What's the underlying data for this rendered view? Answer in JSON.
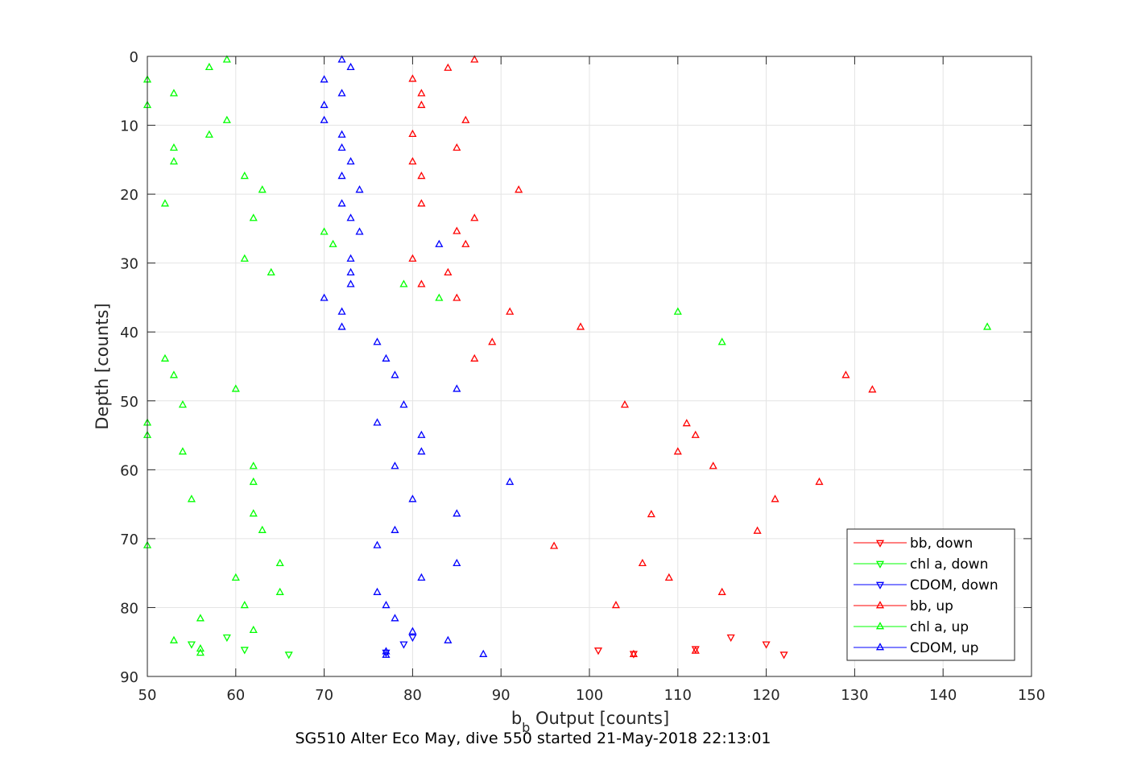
{
  "chart_data": {
    "type": "scatter",
    "title": "SG510 Alter Eco May, dive 550 started 21-May-2018 22:13:01",
    "xlabel_main": "b",
    "xlabel_sub": "b",
    "xlabel_rest": " Output [counts]",
    "ylabel": "Depth [counts]",
    "xlim": [
      50,
      150
    ],
    "ylim": [
      0,
      90
    ],
    "y_reversed": true,
    "grid": true,
    "xticks": [
      "50",
      "60",
      "70",
      "80",
      "90",
      "100",
      "110",
      "120",
      "130",
      "140",
      "150"
    ],
    "yticks": [
      "0",
      "10",
      "20",
      "30",
      "40",
      "50",
      "60",
      "70",
      "80",
      "90"
    ],
    "legend_position": "bottom-right",
    "series": [
      {
        "name": "bb, down",
        "color": "#ff0000",
        "marker": "triangle-down",
        "points": [
          [
            101,
            86.2
          ],
          [
            105,
            86.7
          ],
          [
            112,
            86
          ],
          [
            116,
            84.3
          ],
          [
            120,
            85.3
          ],
          [
            122,
            86.8
          ]
        ]
      },
      {
        "name": "chl a, down",
        "color": "#00ff00",
        "marker": "triangle-down",
        "points": [
          [
            55,
            85.3
          ],
          [
            59,
            84.3
          ],
          [
            61,
            86.1
          ],
          [
            66,
            86.8
          ]
        ]
      },
      {
        "name": "CDOM, down",
        "color": "#0000ff",
        "marker": "triangle-down",
        "points": [
          [
            77,
            86.5
          ],
          [
            79,
            85.3
          ],
          [
            80,
            84.3
          ]
        ]
      },
      {
        "name": "bb, up",
        "color": "#ff0000",
        "marker": "triangle-up",
        "points": [
          [
            87,
            0.5
          ],
          [
            84,
            1.7
          ],
          [
            80,
            3.3
          ],
          [
            81,
            5.4
          ],
          [
            81,
            7.1
          ],
          [
            86,
            9.3
          ],
          [
            80,
            11.3
          ],
          [
            85,
            13.3
          ],
          [
            80,
            15.3
          ],
          [
            81,
            17.4
          ],
          [
            92,
            19.4
          ],
          [
            81,
            21.4
          ],
          [
            87,
            23.5
          ],
          [
            85,
            25.4
          ],
          [
            86,
            27.3
          ],
          [
            80,
            29.4
          ],
          [
            84,
            31.4
          ],
          [
            81,
            33.1
          ],
          [
            85,
            35.1
          ],
          [
            91,
            37.1
          ],
          [
            99,
            39.3
          ],
          [
            89,
            41.5
          ],
          [
            87,
            43.9
          ],
          [
            129,
            46.3
          ],
          [
            132,
            48.4
          ],
          [
            104,
            50.6
          ],
          [
            111,
            53.3
          ],
          [
            112,
            55
          ],
          [
            110,
            57.4
          ],
          [
            114,
            59.5
          ],
          [
            126,
            61.8
          ],
          [
            121,
            64.3
          ],
          [
            107,
            66.5
          ],
          [
            119,
            68.9
          ],
          [
            96,
            71.1
          ],
          [
            106,
            73.6
          ],
          [
            109,
            75.7
          ],
          [
            115,
            77.8
          ],
          [
            103,
            79.7
          ],
          [
            112,
            86.3
          ],
          [
            105,
            86.8
          ]
        ]
      },
      {
        "name": "chl a, up",
        "color": "#00ff00",
        "marker": "triangle-up",
        "points": [
          [
            59,
            0.5
          ],
          [
            57,
            1.6
          ],
          [
            50,
            3.4
          ],
          [
            53,
            5.4
          ],
          [
            50,
            7.1
          ],
          [
            59,
            9.3
          ],
          [
            57,
            11.4
          ],
          [
            53,
            13.3
          ],
          [
            53,
            15.3
          ],
          [
            61,
            17.4
          ],
          [
            63,
            19.4
          ],
          [
            52,
            21.4
          ],
          [
            62,
            23.5
          ],
          [
            70,
            25.5
          ],
          [
            71,
            27.3
          ],
          [
            61,
            29.4
          ],
          [
            64,
            31.4
          ],
          [
            79,
            33.1
          ],
          [
            83,
            35.1
          ],
          [
            110,
            37.1
          ],
          [
            145,
            39.3
          ],
          [
            115,
            41.5
          ],
          [
            52,
            43.9
          ],
          [
            53,
            46.3
          ],
          [
            60,
            48.3
          ],
          [
            54,
            50.6
          ],
          [
            50,
            53.2
          ],
          [
            50,
            55
          ],
          [
            54,
            57.4
          ],
          [
            62,
            59.5
          ],
          [
            62,
            61.8
          ],
          [
            55,
            64.3
          ],
          [
            62,
            66.4
          ],
          [
            63,
            68.8
          ],
          [
            50,
            71
          ],
          [
            65,
            73.6
          ],
          [
            60,
            75.7
          ],
          [
            65,
            77.8
          ],
          [
            61,
            79.7
          ],
          [
            56,
            81.6
          ],
          [
            62,
            83.3
          ],
          [
            53,
            84.8
          ],
          [
            56,
            86
          ],
          [
            56,
            86.6
          ]
        ]
      },
      {
        "name": "CDOM, up",
        "color": "#0000ff",
        "marker": "triangle-up",
        "points": [
          [
            72,
            0.5
          ],
          [
            73,
            1.6
          ],
          [
            70,
            3.4
          ],
          [
            72,
            5.4
          ],
          [
            70,
            7.1
          ],
          [
            70,
            9.3
          ],
          [
            72,
            11.4
          ],
          [
            72,
            13.3
          ],
          [
            73,
            15.3
          ],
          [
            72,
            17.4
          ],
          [
            74,
            19.4
          ],
          [
            72,
            21.4
          ],
          [
            73,
            23.5
          ],
          [
            74,
            25.5
          ],
          [
            83,
            27.3
          ],
          [
            73,
            29.4
          ],
          [
            73,
            31.4
          ],
          [
            73,
            33.1
          ],
          [
            70,
            35.1
          ],
          [
            72,
            37.1
          ],
          [
            72,
            39.3
          ],
          [
            76,
            41.5
          ],
          [
            77,
            43.9
          ],
          [
            78,
            46.3
          ],
          [
            85,
            48.3
          ],
          [
            79,
            50.6
          ],
          [
            76,
            53.2
          ],
          [
            81,
            55
          ],
          [
            81,
            57.4
          ],
          [
            78,
            59.5
          ],
          [
            91,
            61.8
          ],
          [
            80,
            64.3
          ],
          [
            85,
            66.4
          ],
          [
            78,
            68.8
          ],
          [
            76,
            71
          ],
          [
            85,
            73.6
          ],
          [
            81,
            75.7
          ],
          [
            76,
            77.8
          ],
          [
            77,
            79.7
          ],
          [
            78,
            81.6
          ],
          [
            80,
            83.5
          ],
          [
            84,
            84.8
          ],
          [
            77,
            86.4
          ],
          [
            88,
            86.8
          ],
          [
            77,
            86.9
          ]
        ]
      }
    ]
  }
}
